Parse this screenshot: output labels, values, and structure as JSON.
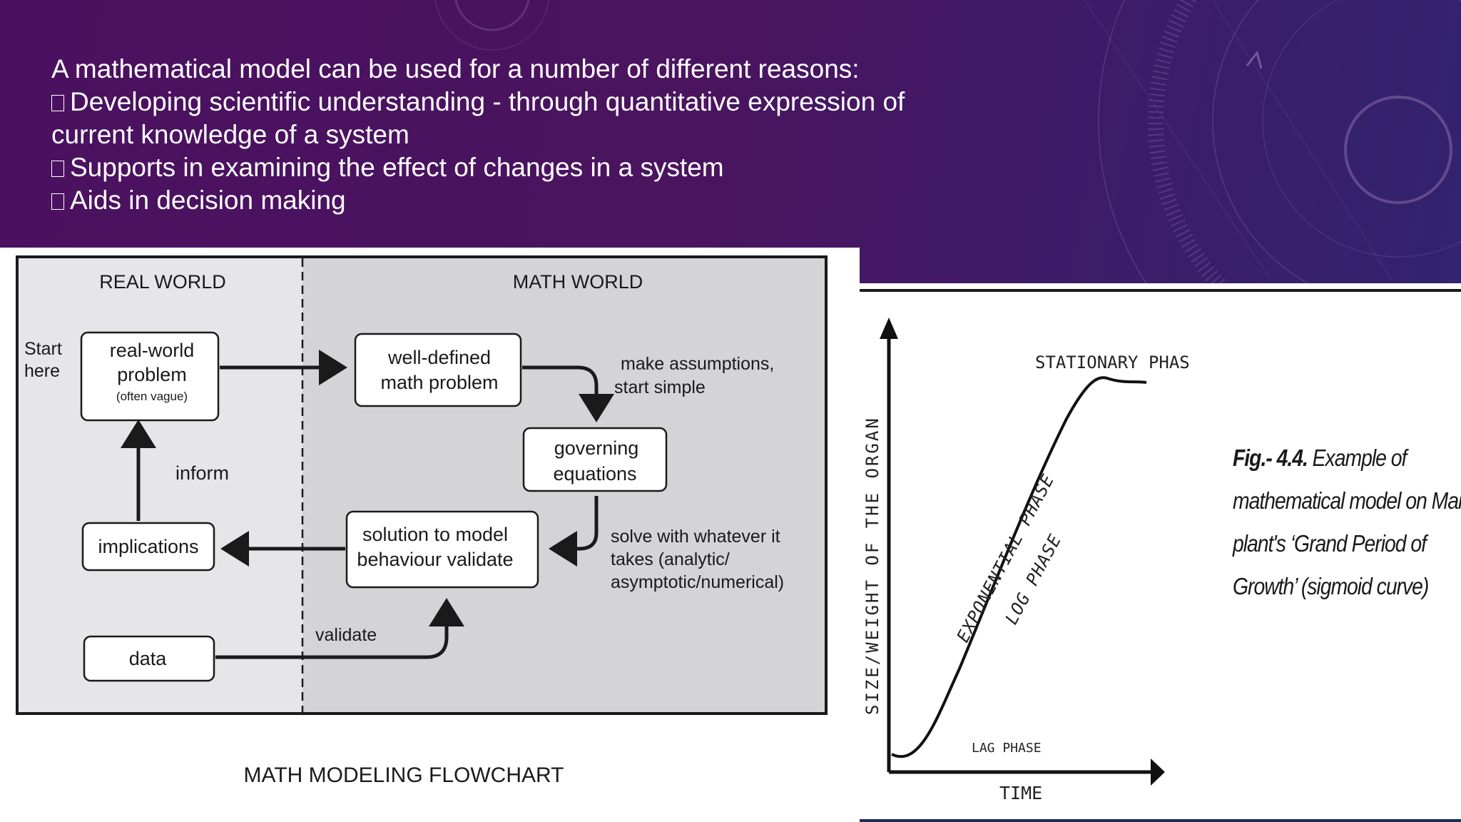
{
  "slide": {
    "intro": "A mathematical model can be used for a number of different reasons:",
    "bullets": [
      {
        "line1": "Developing scientific understanding - through quantitative expression of",
        "line2": "current knowledge of a system"
      },
      {
        "line1": "Supports in examining the effect of changes in a system"
      },
      {
        "line1": "Aids in decision making"
      }
    ],
    "background_color": "#4a1560"
  },
  "flowchart": {
    "real_world_header": "REAL WORLD",
    "math_world_header": "MATH WORLD",
    "start_here_1": "Start",
    "start_here_2": "here",
    "real_world_problem": [
      "real-world",
      "problem",
      "(often vague)"
    ],
    "well_defined": [
      "well-defined",
      "math problem"
    ],
    "assumptions": [
      "make assumptions,",
      "start simple"
    ],
    "governing": [
      "governing",
      "equations"
    ],
    "solution": [
      "solution to model",
      "behaviour validate"
    ],
    "solve_note": [
      "solve with whatever it",
      "takes (analytic/",
      "asymptotic/numerical)"
    ],
    "inform": "inform",
    "implications": "implications",
    "data": "data",
    "validate": "validate",
    "caption": "MATH MODELING FLOWCHART"
  },
  "growth_curve": {
    "type": "line",
    "y_axis_label": "SIZE/WEIGHT OF THE ORGAN",
    "x_axis_label": "TIME",
    "phases": {
      "stationary": "STATIONARY PHAS",
      "exponential": "EXPONENTIAL PHASE",
      "log": "LOG PHASE",
      "lag": "LAG PHASE"
    }
  },
  "figure_caption": {
    "label": "Fig.- 4.4.",
    "line1_rest": " Example of",
    "line2": "mathematical model on Maize",
    "line3": "plant's ‘Grand Period of",
    "line4": "Growth’ (sigmoid curve)"
  }
}
